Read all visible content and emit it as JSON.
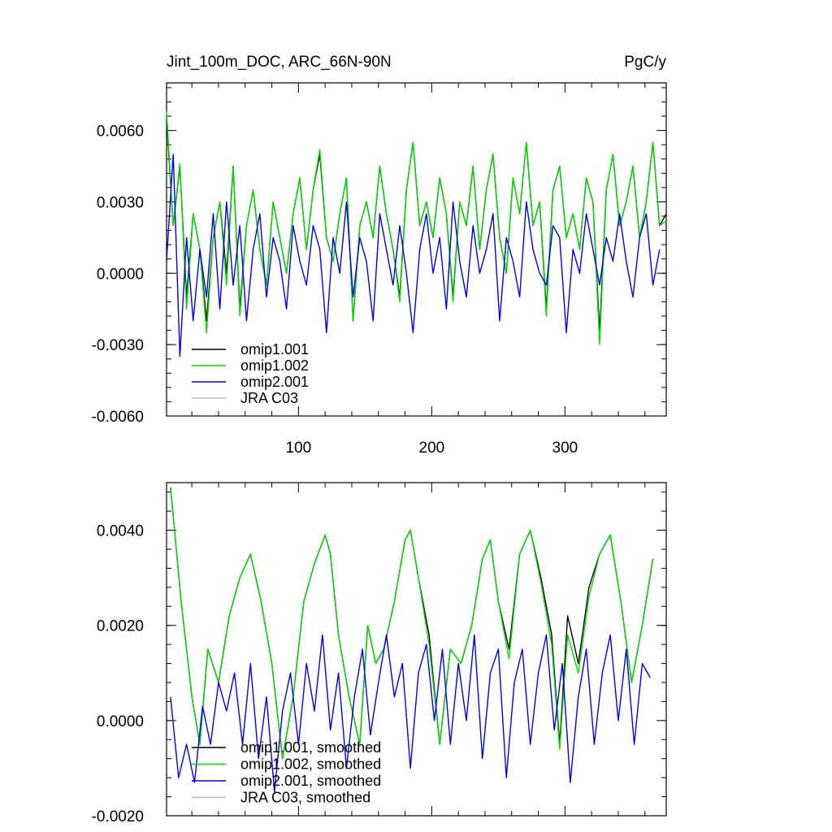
{
  "figure": {
    "title": "Jint_100m_DOC, ARC_66N-90N",
    "units": "PgC/y"
  },
  "chart_data": [
    {
      "id": "top",
      "type": "line",
      "title": "Jint_100m_DOC, ARC_66N-90N",
      "units": "PgC/y",
      "xlabel": "",
      "ylabel": "",
      "xlim": [
        1,
        376
      ],
      "ylim": [
        -0.006,
        0.008
      ],
      "xticks": [
        100,
        200,
        300
      ],
      "xtick_labels": [
        "100",
        "200",
        "300"
      ],
      "yticks": [
        -0.006,
        -0.003,
        0.0,
        0.003,
        0.006
      ],
      "ytick_labels": [
        "-0.0060",
        "-0.0030",
        "0.0000",
        "0.0030",
        "0.0060"
      ],
      "legend_position": "bottom-left",
      "series": [
        {
          "name": "omip1.001",
          "color": "#000000",
          "x_start": 1,
          "x_step": 5,
          "values": [
            0.0065,
            0.002,
            0.0045,
            -0.001,
            0.0025,
            0.001,
            -0.002,
            0.0015,
            0.003,
            0.0,
            0.0045,
            -0.0015,
            0.002,
            0.0035,
            0.001,
            -0.0005,
            0.003,
            0.0015,
            0.0,
            0.0025,
            0.004,
            0.001,
            0.0035,
            0.005,
            0.0015,
            0.0005,
            0.0025,
            0.004,
            -0.002,
            0.002,
            0.003,
            0.0015,
            0.0045,
            0.0025,
            0.001,
            -0.001,
            0.0035,
            0.0055,
            0.002,
            0.003,
            0.0015,
            0.004,
            0.0025,
            -0.001,
            0.003,
            0.002,
            0.0045,
            0.001,
            0.0035,
            0.005,
            0.0015,
            0.0,
            0.004,
            0.0025,
            0.0055,
            0.002,
            0.003,
            -0.0015,
            0.0035,
            0.0045,
            0.0015,
            0.0025,
            0.001,
            0.004,
            0.003,
            -0.0025,
            0.0035,
            0.005,
            0.002,
            0.003,
            0.0045,
            0.0015,
            0.003,
            0.0055,
            0.002,
            0.0025
          ]
        },
        {
          "name": "omip1.002",
          "color": "#00dd00",
          "x_start": 1,
          "x_step": 5,
          "values": [
            0.0068,
            0.002,
            0.0046,
            -0.0015,
            0.0025,
            0.001,
            -0.0025,
            0.0015,
            0.003,
            -0.0005,
            0.0045,
            -0.0018,
            0.002,
            0.0035,
            0.001,
            -0.0005,
            0.003,
            0.0015,
            0.0,
            0.0025,
            0.004,
            0.001,
            0.0035,
            0.0052,
            0.0015,
            0.0005,
            0.0025,
            0.004,
            -0.002,
            0.002,
            0.003,
            0.0015,
            0.0045,
            0.0025,
            0.001,
            -0.0012,
            0.0035,
            0.0055,
            0.002,
            0.003,
            0.0015,
            0.004,
            0.0025,
            -0.0012,
            0.003,
            0.002,
            0.0045,
            0.001,
            0.0035,
            0.005,
            0.0015,
            0.0,
            0.004,
            0.0025,
            0.0055,
            0.002,
            0.003,
            -0.0018,
            0.0035,
            0.0045,
            0.0015,
            0.0025,
            0.001,
            0.004,
            0.003,
            -0.003,
            0.0035,
            0.005,
            0.002,
            0.003,
            0.0045,
            0.0015,
            0.003,
            0.0055,
            0.002,
            0.0022
          ]
        },
        {
          "name": "omip2.001",
          "color": "#0000ee",
          "x_start": 1,
          "x_step": 5,
          "values": [
            0.0005,
            0.005,
            -0.0035,
            0.0015,
            -0.002,
            0.001,
            -0.001,
            0.0025,
            -0.0015,
            0.003,
            -0.0005,
            0.002,
            -0.002,
            0.001,
            0.0025,
            -0.001,
            0.0015,
            0.0005,
            -0.0015,
            0.002,
            0.0005,
            -0.0005,
            0.002,
            0.001,
            -0.0025,
            0.0015,
            0.0,
            0.003,
            -0.001,
            0.0015,
            0.0005,
            -0.002,
            0.0025,
            0.001,
            -0.0005,
            0.002,
            0.0,
            -0.0025,
            0.001,
            0.0025,
            0.0,
            0.0015,
            -0.0015,
            0.003,
            0.0005,
            -0.001,
            0.002,
            0.0,
            0.001,
            0.0025,
            -0.002,
            0.0015,
            0.0005,
            -0.001,
            0.003,
            0.001,
            0.0,
            -0.0005,
            0.002,
            0.0015,
            -0.0025,
            0.001,
            0.0,
            0.0025,
            0.001,
            -0.0005,
            0.0015,
            0.0005,
            0.0025,
            0.0005,
            -0.001,
            0.0015,
            0.0025,
            -0.0005,
            0.001
          ]
        },
        {
          "name": "JRA C03",
          "color": "#bbbbbb",
          "values": []
        }
      ]
    },
    {
      "id": "bottom",
      "type": "line",
      "title": "",
      "xlabel": "",
      "ylabel": "",
      "xlim": [
        1,
        376
      ],
      "ylim": [
        -0.002,
        0.005
      ],
      "xticks": [
        100,
        200,
        300
      ],
      "xtick_labels": [
        "",
        "",
        ""
      ],
      "yticks": [
        -0.002,
        0.0,
        0.002,
        0.004
      ],
      "ytick_labels": [
        "-0.0020",
        "0.0000",
        "0.0020",
        "0.0040"
      ],
      "legend_position": "bottom-left",
      "series": [
        {
          "name": "omip1.001, smoothed",
          "color": "#000000",
          "x": [
            4,
            12,
            20,
            26,
            32,
            40,
            48,
            56,
            64,
            72,
            80,
            88,
            96,
            104,
            112,
            120,
            124,
            130,
            138,
            146,
            152,
            158,
            164,
            172,
            180,
            184,
            190,
            198,
            206,
            214,
            222,
            230,
            238,
            244,
            250,
            258,
            266,
            274,
            282,
            290,
            296,
            302,
            310,
            318,
            326,
            334,
            342,
            350,
            358,
            366
          ],
          "values": [
            0.0049,
            0.0025,
            0.0005,
            -0.0005,
            0.0015,
            0.0008,
            0.0022,
            0.003,
            0.0035,
            0.0025,
            0.0012,
            -0.0008,
            0.0005,
            0.0025,
            0.0033,
            0.0039,
            0.0035,
            0.0018,
            0.0005,
            -0.0005,
            0.002,
            0.0012,
            0.0015,
            0.0025,
            0.0038,
            0.004,
            0.003,
            0.0018,
            -0.0005,
            0.0015,
            0.0012,
            0.002,
            0.0034,
            0.0038,
            0.0025,
            0.0015,
            0.0035,
            0.004,
            0.003,
            0.0018,
            -0.0005,
            0.0022,
            0.0012,
            0.0028,
            0.0035,
            0.0039,
            0.0025,
            0.0008,
            0.002,
            0.0034
          ]
        },
        {
          "name": "omip1.002, smoothed",
          "color": "#00dd00",
          "x": [
            4,
            12,
            20,
            26,
            32,
            40,
            48,
            56,
            64,
            72,
            80,
            88,
            96,
            104,
            112,
            120,
            124,
            130,
            138,
            146,
            152,
            158,
            164,
            172,
            180,
            184,
            190,
            198,
            206,
            214,
            222,
            230,
            238,
            244,
            250,
            258,
            266,
            274,
            282,
            290,
            296,
            302,
            310,
            318,
            326,
            334,
            342,
            350,
            358,
            366
          ],
          "values": [
            0.0049,
            0.0025,
            0.0005,
            -0.0005,
            0.0015,
            0.0008,
            0.0022,
            0.003,
            0.0035,
            0.0025,
            0.0012,
            -0.0008,
            0.0005,
            0.0025,
            0.0033,
            0.0039,
            0.0035,
            0.0018,
            0.0005,
            -0.0005,
            0.002,
            0.0012,
            0.0015,
            0.0025,
            0.0038,
            0.004,
            0.003,
            0.0016,
            -0.0005,
            0.0015,
            0.0012,
            0.002,
            0.0034,
            0.0038,
            0.0025,
            0.0013,
            0.0035,
            0.004,
            0.0029,
            0.0016,
            -0.0006,
            0.0018,
            0.001,
            0.0026,
            0.0035,
            0.0039,
            0.0025,
            0.0008,
            0.002,
            0.0034
          ]
        },
        {
          "name": "omip2.001, smoothed",
          "color": "#0000ee",
          "x": [
            4,
            10,
            16,
            22,
            28,
            34,
            40,
            46,
            52,
            58,
            64,
            70,
            76,
            82,
            88,
            94,
            100,
            106,
            112,
            118,
            124,
            130,
            136,
            142,
            148,
            154,
            160,
            166,
            172,
            178,
            184,
            190,
            196,
            202,
            208,
            214,
            220,
            226,
            232,
            238,
            244,
            250,
            256,
            262,
            268,
            274,
            280,
            286,
            292,
            298,
            304,
            310,
            316,
            322,
            328,
            334,
            340,
            346,
            352,
            358,
            364
          ],
          "values": [
            0.0005,
            -0.0012,
            -0.0005,
            -0.0013,
            0.0003,
            -0.0005,
            0.0008,
            0.0002,
            0.001,
            -0.0005,
            0.0012,
            -0.0008,
            0.0005,
            -0.0015,
            0.0002,
            0.001,
            -0.0005,
            0.0012,
            0.0002,
            0.0018,
            -0.0002,
            0.001,
            -0.001,
            0.0005,
            0.0015,
            -0.0003,
            0.0008,
            0.0018,
            0.0005,
            0.0012,
            -0.001,
            0.001,
            0.0016,
            0.0,
            0.0015,
            -0.0005,
            0.0012,
            0.0,
            0.0018,
            -0.0008,
            0.001,
            0.0015,
            -0.0012,
            0.0008,
            0.0015,
            -0.0005,
            0.001,
            0.0018,
            -0.0002,
            0.0012,
            -0.0013,
            0.0005,
            0.0015,
            -0.0005,
            0.001,
            0.0018,
            0.0,
            0.0015,
            -0.0005,
            0.0012,
            0.0009
          ]
        },
        {
          "name": "JRA C03, smoothed",
          "color": "#bbbbbb",
          "values": []
        }
      ]
    }
  ]
}
